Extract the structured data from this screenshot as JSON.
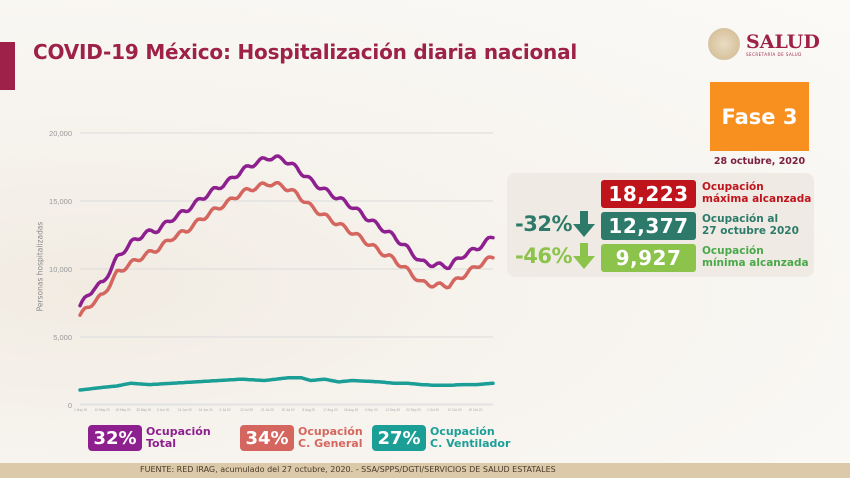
{
  "header": {
    "title": "COVID-19 México: Hospitalización diaria nacional",
    "logo_name": "SALUD",
    "logo_sub": "SECRETARÍA DE SALUD"
  },
  "phase": {
    "label": "Fase 3",
    "date": "28 octubre, 2020",
    "color": "#f7901e"
  },
  "stats": {
    "max": {
      "value": "18,223",
      "label_line1": "Ocupación",
      "label_line2": "máxima alcanzada",
      "color": "#c0141c"
    },
    "current": {
      "value": "12,377",
      "change": "-32%",
      "label_line1": "Ocupación al",
      "label_line2": "27 octubre 2020",
      "color": "#2d7a6a"
    },
    "min": {
      "value": "9,927",
      "change": "-46%",
      "label_line1": "Ocupación",
      "label_line2": "mínima alcanzada",
      "color": "#8cc34a"
    },
    "arrow_icon": "arrow-down-icon"
  },
  "legend": [
    {
      "pct": "32%",
      "line1": "Ocupación",
      "line2": "Total",
      "color": "#8e1f8e"
    },
    {
      "pct": "34%",
      "line1": "Ocupación",
      "line2": "C. General",
      "color": "#d4665f"
    },
    {
      "pct": "27%",
      "line1": "Ocupación",
      "line2": "C. Ventilador",
      "color": "#1a9e96"
    }
  ],
  "footer": "FUENTE: RED IRAG, acumulado del 27 octubre, 2020. -  SSA/SPPS/DGTI/SERVICIOS DE SALUD ESTATALES",
  "chart_data": {
    "type": "line",
    "title": "COVID-19 México: Hospitalización diaria nacional",
    "xlabel": "",
    "ylabel": "Personas hospitalizadas",
    "ylim": [
      0,
      20000
    ],
    "yticks": [
      "0",
      "5,000",
      "10,000",
      "15,000",
      "20,000"
    ],
    "ytick_values": [
      0,
      5000,
      10000,
      15000,
      20000
    ],
    "grid": true,
    "xticks": [
      "1 May 20",
      "10 May 20",
      "19 May 20",
      "28 May 20",
      "6 Jun 20",
      "15 Jun 20",
      "24 Jun 20",
      "3 Jul 20",
      "12 Jul 20",
      "21 Jul 20",
      "30 Jul 20",
      "8 Aug 20",
      "17 Aug 20",
      "26 Aug 20",
      "4 Sep 20",
      "13 Sep 20",
      "22 Sep 20",
      "1 Oct 20",
      "10 Oct 20",
      "19 Oct 20"
    ],
    "x_index_range": [
      0,
      179
    ],
    "series": [
      {
        "name": "Ocupación Total",
        "color": "#8e1f8e",
        "x": [
          0,
          6,
          10,
          16,
          22,
          28,
          34,
          40,
          46,
          52,
          58,
          64,
          70,
          76,
          82,
          88,
          94,
          100,
          106,
          112,
          118,
          124,
          130,
          136,
          142,
          148,
          154,
          160,
          166,
          172,
          179
        ],
        "values": [
          7300,
          8600,
          9000,
          10800,
          11900,
          12600,
          12900,
          13700,
          14300,
          15100,
          15800,
          16400,
          17200,
          17800,
          18200,
          18100,
          17400,
          16500,
          15800,
          15200,
          14600,
          13800,
          13100,
          12400,
          11500,
          10500,
          10300,
          10200,
          11000,
          11500,
          12377
        ]
      },
      {
        "name": "Ocupación C. General",
        "color": "#d4665f",
        "x": [
          0,
          6,
          10,
          16,
          22,
          28,
          34,
          40,
          46,
          52,
          58,
          64,
          70,
          76,
          82,
          88,
          94,
          100,
          106,
          112,
          118,
          124,
          130,
          136,
          142,
          148,
          154,
          160,
          166,
          172,
          179
        ],
        "values": [
          6600,
          7600,
          8100,
          9700,
          10400,
          11000,
          11500,
          12300,
          12800,
          13600,
          14300,
          14900,
          15600,
          16000,
          16300,
          16100,
          15500,
          14600,
          13900,
          13300,
          12700,
          12000,
          11300,
          10700,
          9900,
          9000,
          8800,
          8800,
          9500,
          10200,
          10900
        ]
      },
      {
        "name": "Ocupación C. Ventilador",
        "color": "#1a9e96",
        "x": [
          0,
          10,
          16,
          22,
          30,
          40,
          50,
          60,
          70,
          80,
          90,
          96,
          100,
          106,
          112,
          118,
          124,
          130,
          136,
          142,
          148,
          154,
          160,
          166,
          172,
          179
        ],
        "values": [
          1100,
          1300,
          1400,
          1600,
          1500,
          1600,
          1700,
          1800,
          1900,
          1800,
          2000,
          2000,
          1800,
          1900,
          1700,
          1800,
          1750,
          1700,
          1600,
          1600,
          1500,
          1450,
          1450,
          1500,
          1500,
          1600
        ]
      }
    ]
  }
}
